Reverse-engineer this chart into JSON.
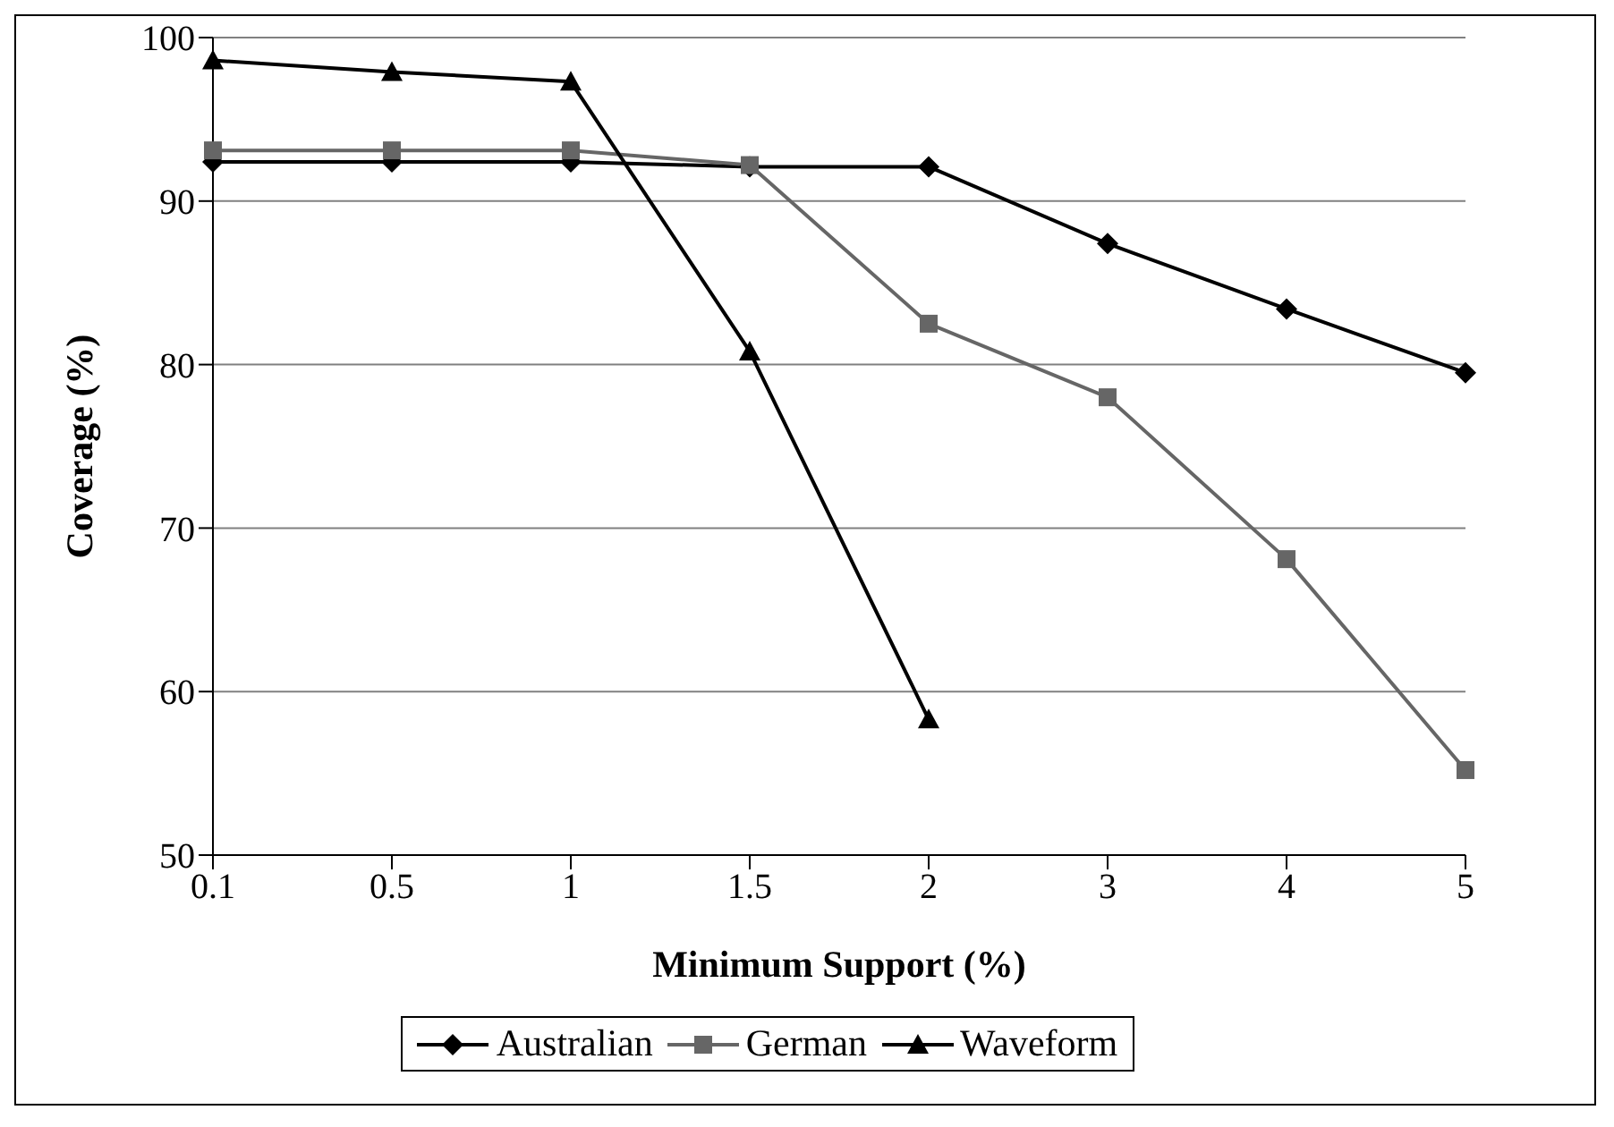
{
  "chart_data": {
    "type": "line",
    "xlabel": "Minimum Support (%)",
    "ylabel": "Coverage (%)",
    "categories": [
      "0.1",
      "0.5",
      "1",
      "1.5",
      "2",
      "3",
      "4",
      "5"
    ],
    "series": [
      {
        "name": "Australian",
        "color": "#000000",
        "marker": "diamond",
        "values": [
          92.4,
          92.4,
          92.4,
          92.1,
          92.1,
          87.4,
          83.4,
          79.5
        ]
      },
      {
        "name": "German",
        "color": "#666666",
        "marker": "square",
        "values": [
          93.1,
          93.1,
          93.1,
          92.2,
          82.5,
          78,
          68.1,
          55.2
        ]
      },
      {
        "name": "Waveform",
        "color": "#000000",
        "marker": "triangle",
        "values": [
          98.6,
          97.9,
          97.3,
          80.8,
          58.3,
          null,
          null,
          null
        ]
      }
    ],
    "ylim": [
      50,
      100
    ],
    "yticks": [
      50,
      60,
      70,
      80,
      90,
      100
    ],
    "grid": "y",
    "legend": "bottom"
  }
}
